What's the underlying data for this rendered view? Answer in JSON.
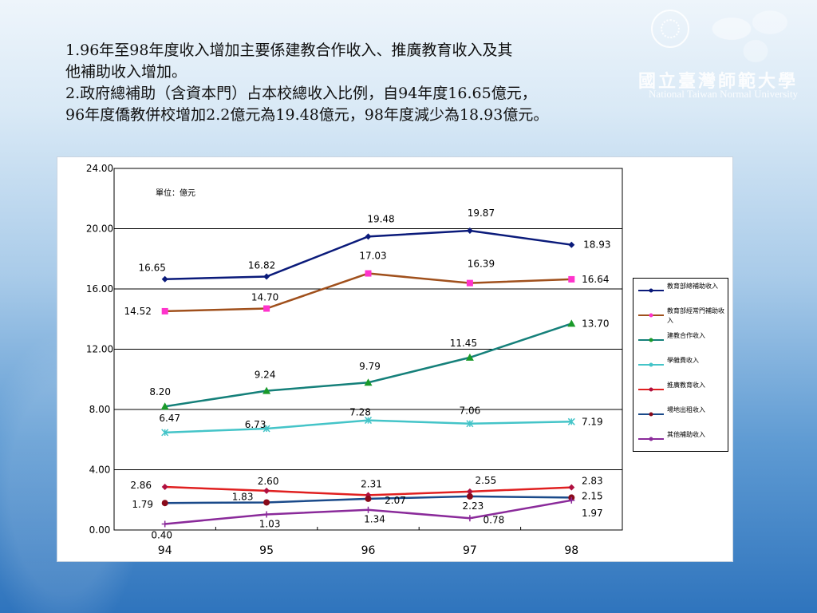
{
  "header": {
    "school_name": "國立臺灣師範大學",
    "school_name_en": "National Taiwan Normal University"
  },
  "summary": {
    "line1": "1.96年至98年度收入增加主要係建教合作收入、推廣教育收入及其",
    "line2": "他補助收入增加。",
    "line3": "2.政府總補助（含資本門）占本校總收入比例，自94年度16.65億元，",
    "line4": "96年度僑教併校增加2.2億元為19.48億元，98年度減少為18.93億元。"
  },
  "chart_data": {
    "type": "line",
    "unit_note": "單位：億元",
    "categories": [
      "94",
      "95",
      "96",
      "97",
      "98"
    ],
    "ylim": [
      0,
      24
    ],
    "yticks": [
      "0.00",
      "4.00",
      "8.00",
      "12.00",
      "16.00",
      "20.00",
      "24.00"
    ],
    "grid": true,
    "legend_position": "right",
    "series": [
      {
        "name": "教育部總補助收入",
        "color": "#0a1a7a",
        "marker": "diamond",
        "values": [
          16.65,
          16.82,
          19.48,
          19.87,
          18.93
        ],
        "labels": [
          "16.65",
          "16.82",
          "19.48",
          "19.87",
          "18.93"
        ]
      },
      {
        "name": "教育部經常門補助收入",
        "color": "#a0501c",
        "marker_color": "#ff33cc",
        "marker": "square",
        "values": [
          14.52,
          14.7,
          17.03,
          16.39,
          16.64
        ],
        "labels": [
          "14.52",
          "14.70",
          "17.03",
          "16.39",
          "16.64"
        ]
      },
      {
        "name": "建教合作收入",
        "color": "#15807a",
        "marker_color": "#1a9a2a",
        "marker": "triangle",
        "values": [
          8.2,
          9.24,
          9.79,
          11.45,
          13.7
        ],
        "labels": [
          "8.20",
          "9.24",
          "9.79",
          "11.45",
          "13.70"
        ]
      },
      {
        "name": "學雜費收入",
        "color": "#44c4c8",
        "marker": "star",
        "values": [
          6.47,
          6.73,
          7.28,
          7.06,
          7.19
        ],
        "labels": [
          "6.47",
          "6.73",
          "7.28",
          "7.06",
          "7.19"
        ]
      },
      {
        "name": "推廣教育收入",
        "color": "#e02020",
        "marker_color": "#b01040",
        "marker": "diamond",
        "values": [
          2.86,
          2.6,
          2.31,
          2.55,
          2.83
        ],
        "labels": [
          "2.86",
          "2.60",
          "2.31",
          "2.55",
          "2.83"
        ]
      },
      {
        "name": "場地出租收入",
        "color": "#1a4a8a",
        "marker_color": "#8a0a1a",
        "marker": "circle",
        "values": [
          1.79,
          1.83,
          2.07,
          2.23,
          2.15
        ],
        "labels": [
          "1.79",
          "1.83",
          "2.07",
          "2.23",
          "2.15"
        ]
      },
      {
        "name": "其他補助收入",
        "color": "#8a2a9a",
        "marker": "plus",
        "values": [
          0.4,
          1.03,
          1.34,
          0.78,
          1.97
        ],
        "labels": [
          "0.40",
          "1.03",
          "1.34",
          "0.78",
          "1.97"
        ]
      }
    ]
  }
}
